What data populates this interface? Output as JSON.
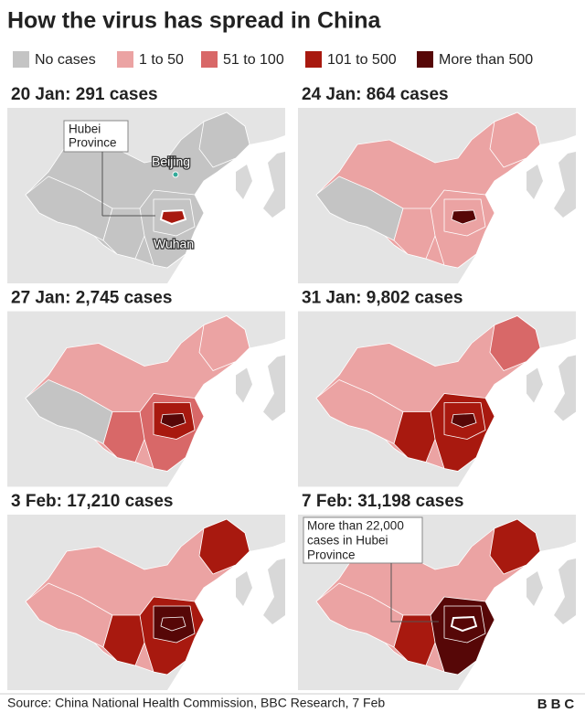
{
  "header": {
    "title": "How the virus has spread in China"
  },
  "legend": {
    "items": [
      {
        "label": "No cases",
        "color": "#c4c4c4"
      },
      {
        "label": "1 to 50",
        "color": "#eba3a3"
      },
      {
        "label": "51 to 100",
        "color": "#d86868"
      },
      {
        "label": "101 to 500",
        "color": "#a8190f"
      },
      {
        "label": "More than 500",
        "color": "#560707"
      }
    ]
  },
  "panels": [
    {
      "title": "20 Jan: 291 cases",
      "annotations": [
        "Hubei",
        "Province",
        "Beijing",
        "Wuhan"
      ]
    },
    {
      "title": "24 Jan: 864 cases"
    },
    {
      "title": "27 Jan: 2,745 cases"
    },
    {
      "title": "31 Jan: 9,802 cases"
    },
    {
      "title": "3 Feb: 17,210 cases"
    },
    {
      "title": "7 Feb: 31,198 cases",
      "annotations": [
        "More than 22,000",
        "cases in Hubei",
        "Province"
      ]
    }
  ],
  "footer": {
    "source": "Source: China National Health Commission, BBC Research, 7 Feb",
    "logo": "BBC"
  }
}
